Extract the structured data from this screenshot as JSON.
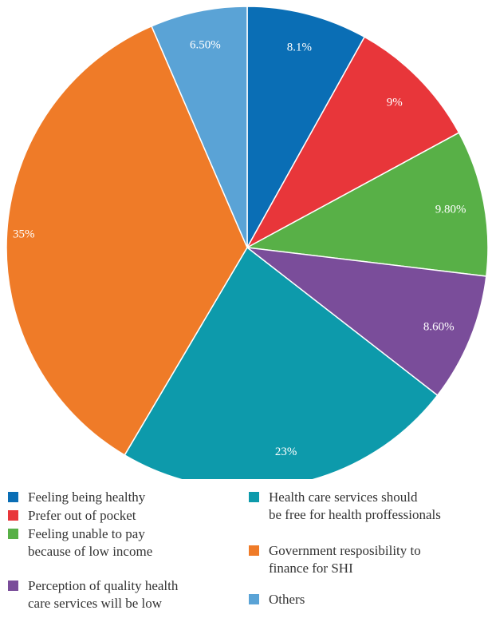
{
  "chart_data": {
    "type": "pie",
    "slices": [
      {
        "label": "Feeling being healthy",
        "value": 8.1,
        "display": "8.1%",
        "color": "#0a6eb5"
      },
      {
        "label": "Prefer out of pocket",
        "value": 9,
        "display": "9%",
        "color": "#e8363a"
      },
      {
        "label": "Feeling unable to pay because of low income",
        "value": 9.8,
        "display": "9.80%",
        "color": "#58b047"
      },
      {
        "label": "Perception of quality health care services will be low",
        "value": 8.6,
        "display": "8.60%",
        "color": "#7a4d9a"
      },
      {
        "label": "Health care services should be free for health proffessionals",
        "value": 23,
        "display": "23%",
        "color": "#0d9aab"
      },
      {
        "label": "Government resposibility to finance for SHI",
        "value": 35,
        "display": "35%",
        "color": "#ef7b28"
      },
      {
        "label": "Others",
        "value": 6.5,
        "display": "6.50%",
        "color": "#5aa3d6"
      }
    ],
    "start_angle": "12 o'clock",
    "direction": "clockwise",
    "legend_placement": "bottom"
  },
  "legend": {
    "items": [
      {
        "text": "Feeling being healthy",
        "color": "#0a6eb5"
      },
      {
        "text": "Prefer out of pocket",
        "color": "#e8363a"
      },
      {
        "text": "Feeling unable to pay\nbecause of low income",
        "color": "#58b047"
      },
      {
        "text": "Perception of quality health\ncare services will be low",
        "color": "#7a4d9a"
      },
      {
        "text": "Health care services should\nbe free for health proffessionals",
        "color": "#0d9aab"
      },
      {
        "text": "Government resposibility to\nfinance for SHI",
        "color": "#ef7b28"
      },
      {
        "text": "Others",
        "color": "#5aa3d6"
      }
    ]
  }
}
